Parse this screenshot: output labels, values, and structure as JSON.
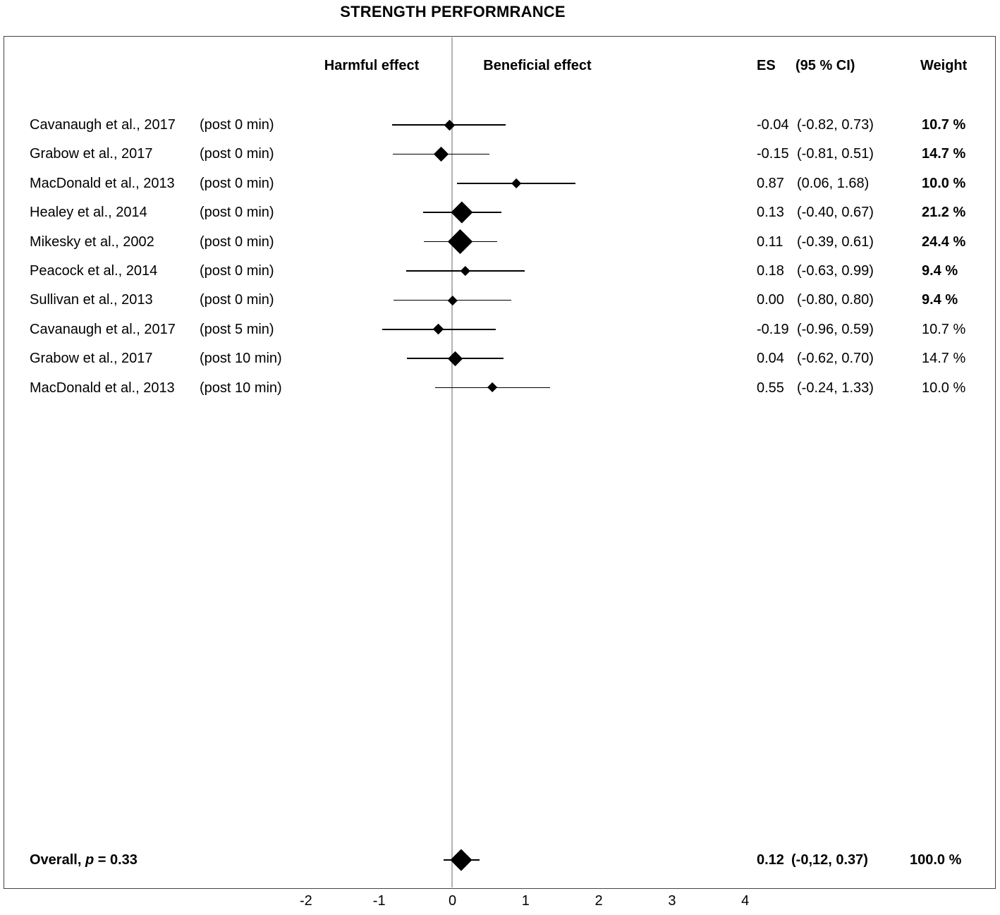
{
  "title": "STRENGTH PERFORMRANCE",
  "headers": {
    "harmful": "Harmful effect",
    "beneficial": "Beneficial effect",
    "es": "ES",
    "ci": "(95 % CI)",
    "weight": "Weight"
  },
  "colors": {
    "marker": "#000000",
    "whisker": "#000000",
    "zero_line": "#b3b3b3",
    "frame_border": "#444444",
    "text": "#000000",
    "background": "#ffffff"
  },
  "chart_data": {
    "type": "forest",
    "title": "STRENGTH PERFORMRANCE",
    "x_axis": {
      "ticks": [
        -2,
        -1,
        0,
        1,
        2,
        3,
        4
      ],
      "range": [
        -2.6,
        4.6
      ],
      "zero_line": 0
    },
    "legend_left": "Harmful effect",
    "legend_right": "Beneficial effect",
    "studies": [
      {
        "study": "Cavanaugh et al., 2017",
        "time": "(post 0 min)",
        "es": -0.04,
        "ci": [
          -0.82,
          0.73
        ],
        "es_text": "-0.04",
        "ci_text": "(-0.82, 0.73)",
        "weight": 10.7,
        "weight_text": "10.7 %",
        "weight_bold": true
      },
      {
        "study": "Grabow et al., 2017",
        "time": "(post 0 min)",
        "es": -0.15,
        "ci": [
          -0.81,
          0.51
        ],
        "es_text": "-0.15",
        "ci_text": "(-0.81, 0.51)",
        "weight": 14.7,
        "weight_text": "14.7 %",
        "weight_bold": true
      },
      {
        "study": "MacDonald et al., 2013",
        "time": "(post 0 min)",
        "es": 0.87,
        "ci": [
          0.06,
          1.68
        ],
        "es_text": "0.87",
        "ci_text": "(0.06, 1.68)",
        "weight": 10.0,
        "weight_text": "10.0 %",
        "weight_bold": true
      },
      {
        "study": "Healey et al., 2014",
        "time": "(post 0 min)",
        "es": 0.13,
        "ci": [
          -0.4,
          0.67
        ],
        "es_text": "0.13",
        "ci_text": "(-0.40, 0.67)",
        "weight": 21.2,
        "weight_text": "21.2 %",
        "weight_bold": true
      },
      {
        "study": "Mikesky et al., 2002",
        "time": "(post 0 min)",
        "es": 0.11,
        "ci": [
          -0.39,
          0.61
        ],
        "es_text": "0.11",
        "ci_text": "(-0.39, 0.61)",
        "weight": 24.4,
        "weight_text": "24.4 %",
        "weight_bold": true
      },
      {
        "study": "Peacock et al., 2014",
        "time": "(post 0 min)",
        "es": 0.18,
        "ci": [
          -0.63,
          0.99
        ],
        "es_text": "0.18",
        "ci_text": "(-0.63, 0.99)",
        "weight": 9.4,
        "weight_text": "9.4 %",
        "weight_bold": true
      },
      {
        "study": "Sullivan et al., 2013",
        "time": "(post 0 min)",
        "es": 0.0,
        "ci": [
          -0.8,
          0.8
        ],
        "es_text": "0.00",
        "ci_text": "(-0.80, 0.80)",
        "weight": 9.4,
        "weight_text": "9.4 %",
        "weight_bold": true
      },
      {
        "study": "Cavanaugh et al., 2017",
        "time": "(post 5 min)",
        "es": -0.19,
        "ci": [
          -0.96,
          0.59
        ],
        "es_text": "-0.19",
        "ci_text": "(-0.96, 0.59)",
        "weight": 10.7,
        "weight_text": "10.7 %",
        "weight_bold": false
      },
      {
        "study": "Grabow et al., 2017",
        "time": "(post 10 min)",
        "es": 0.04,
        "ci": [
          -0.62,
          0.7
        ],
        "es_text": "0.04",
        "ci_text": "(-0.62, 0.70)",
        "weight": 14.7,
        "weight_text": "14.7 %",
        "weight_bold": false
      },
      {
        "study": "MacDonald et al., 2013",
        "time": "(post 10 min)",
        "es": 0.55,
        "ci": [
          -0.24,
          1.33
        ],
        "es_text": "0.55",
        "ci_text": "(-0.24, 1.33)",
        "weight": 10.0,
        "weight_text": "10.0 %",
        "weight_bold": false
      }
    ],
    "overall": {
      "label_pre": "Overall, ",
      "label_p": "p",
      "label_post": " = 0.33",
      "es": 0.12,
      "ci": [
        -0.12,
        0.37
      ],
      "es_text": "0.12",
      "ci_text": "(-0,12, 0.37)",
      "weight": 100.0,
      "weight_text": "100.0 %"
    }
  }
}
